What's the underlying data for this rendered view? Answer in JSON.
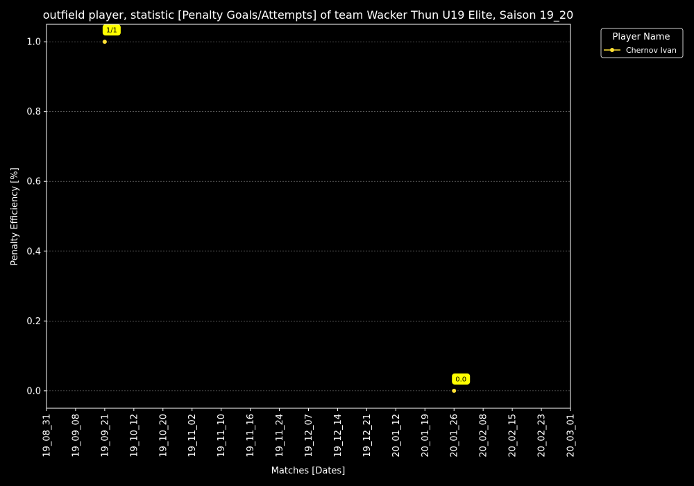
{
  "chart_data": {
    "type": "line",
    "title": "outfield player, statistic [Penalty Goals/Attempts] of team Wacker Thun U19 Elite, Saison 19_20",
    "xlabel": "Matches [Dates]",
    "ylabel": "Penalty Efficiency [%]",
    "ylim": [
      -0.05,
      1.05
    ],
    "y_ticks": [
      "0.0",
      "0.2",
      "0.4",
      "0.6",
      "0.8",
      "1.0"
    ],
    "y_tick_values": [
      0.0,
      0.2,
      0.4,
      0.6,
      0.8,
      1.0
    ],
    "categories": [
      "19_08_31",
      "19_09_08",
      "19_09_21",
      "19_10_12",
      "19_10_20",
      "19_11_02",
      "19_11_10",
      "19_11_16",
      "19_11_24",
      "19_12_07",
      "19_12_14",
      "19_12_21",
      "20_01_12",
      "20_01_19",
      "20_01_26",
      "20_02_08",
      "20_02_15",
      "20_02_23",
      "20_03_01"
    ],
    "grid": "horizontal dashed",
    "legend": {
      "title": "Player Name",
      "placement": "outside top-right"
    },
    "series": [
      {
        "name": "Chernov Ivan",
        "color": "#FFE135",
        "points": [
          {
            "x": "19_09_21",
            "y": 1.0,
            "label": "1/1"
          },
          {
            "x": "20_01_26",
            "y": 0.0,
            "label": "0.0"
          }
        ]
      }
    ]
  }
}
